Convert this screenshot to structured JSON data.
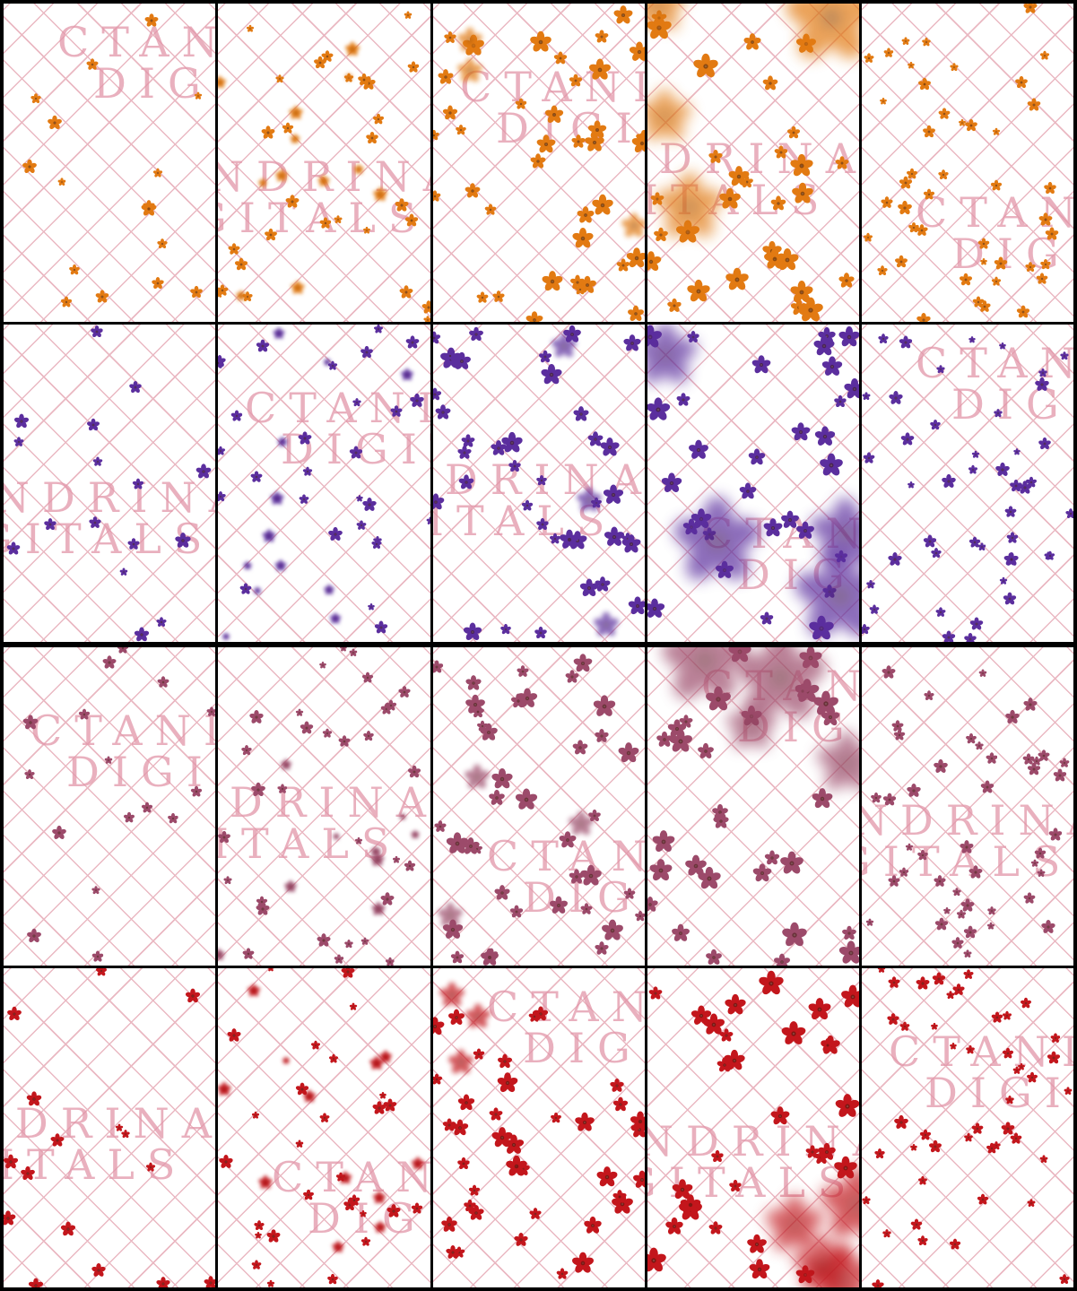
{
  "watermark": {
    "line1": "CTANDRINA",
    "line2": "DIGITALS"
  },
  "rows": [
    {
      "name": "orange",
      "color": "#e27a12",
      "tiles": 5
    },
    {
      "name": "purple",
      "color": "#5b2e9e",
      "tiles": 5
    },
    {
      "name": "mauve-pink",
      "color": "#9c4a6a",
      "tiles": 5
    },
    {
      "name": "red",
      "color": "#c3161c",
      "tiles": 5
    }
  ]
}
